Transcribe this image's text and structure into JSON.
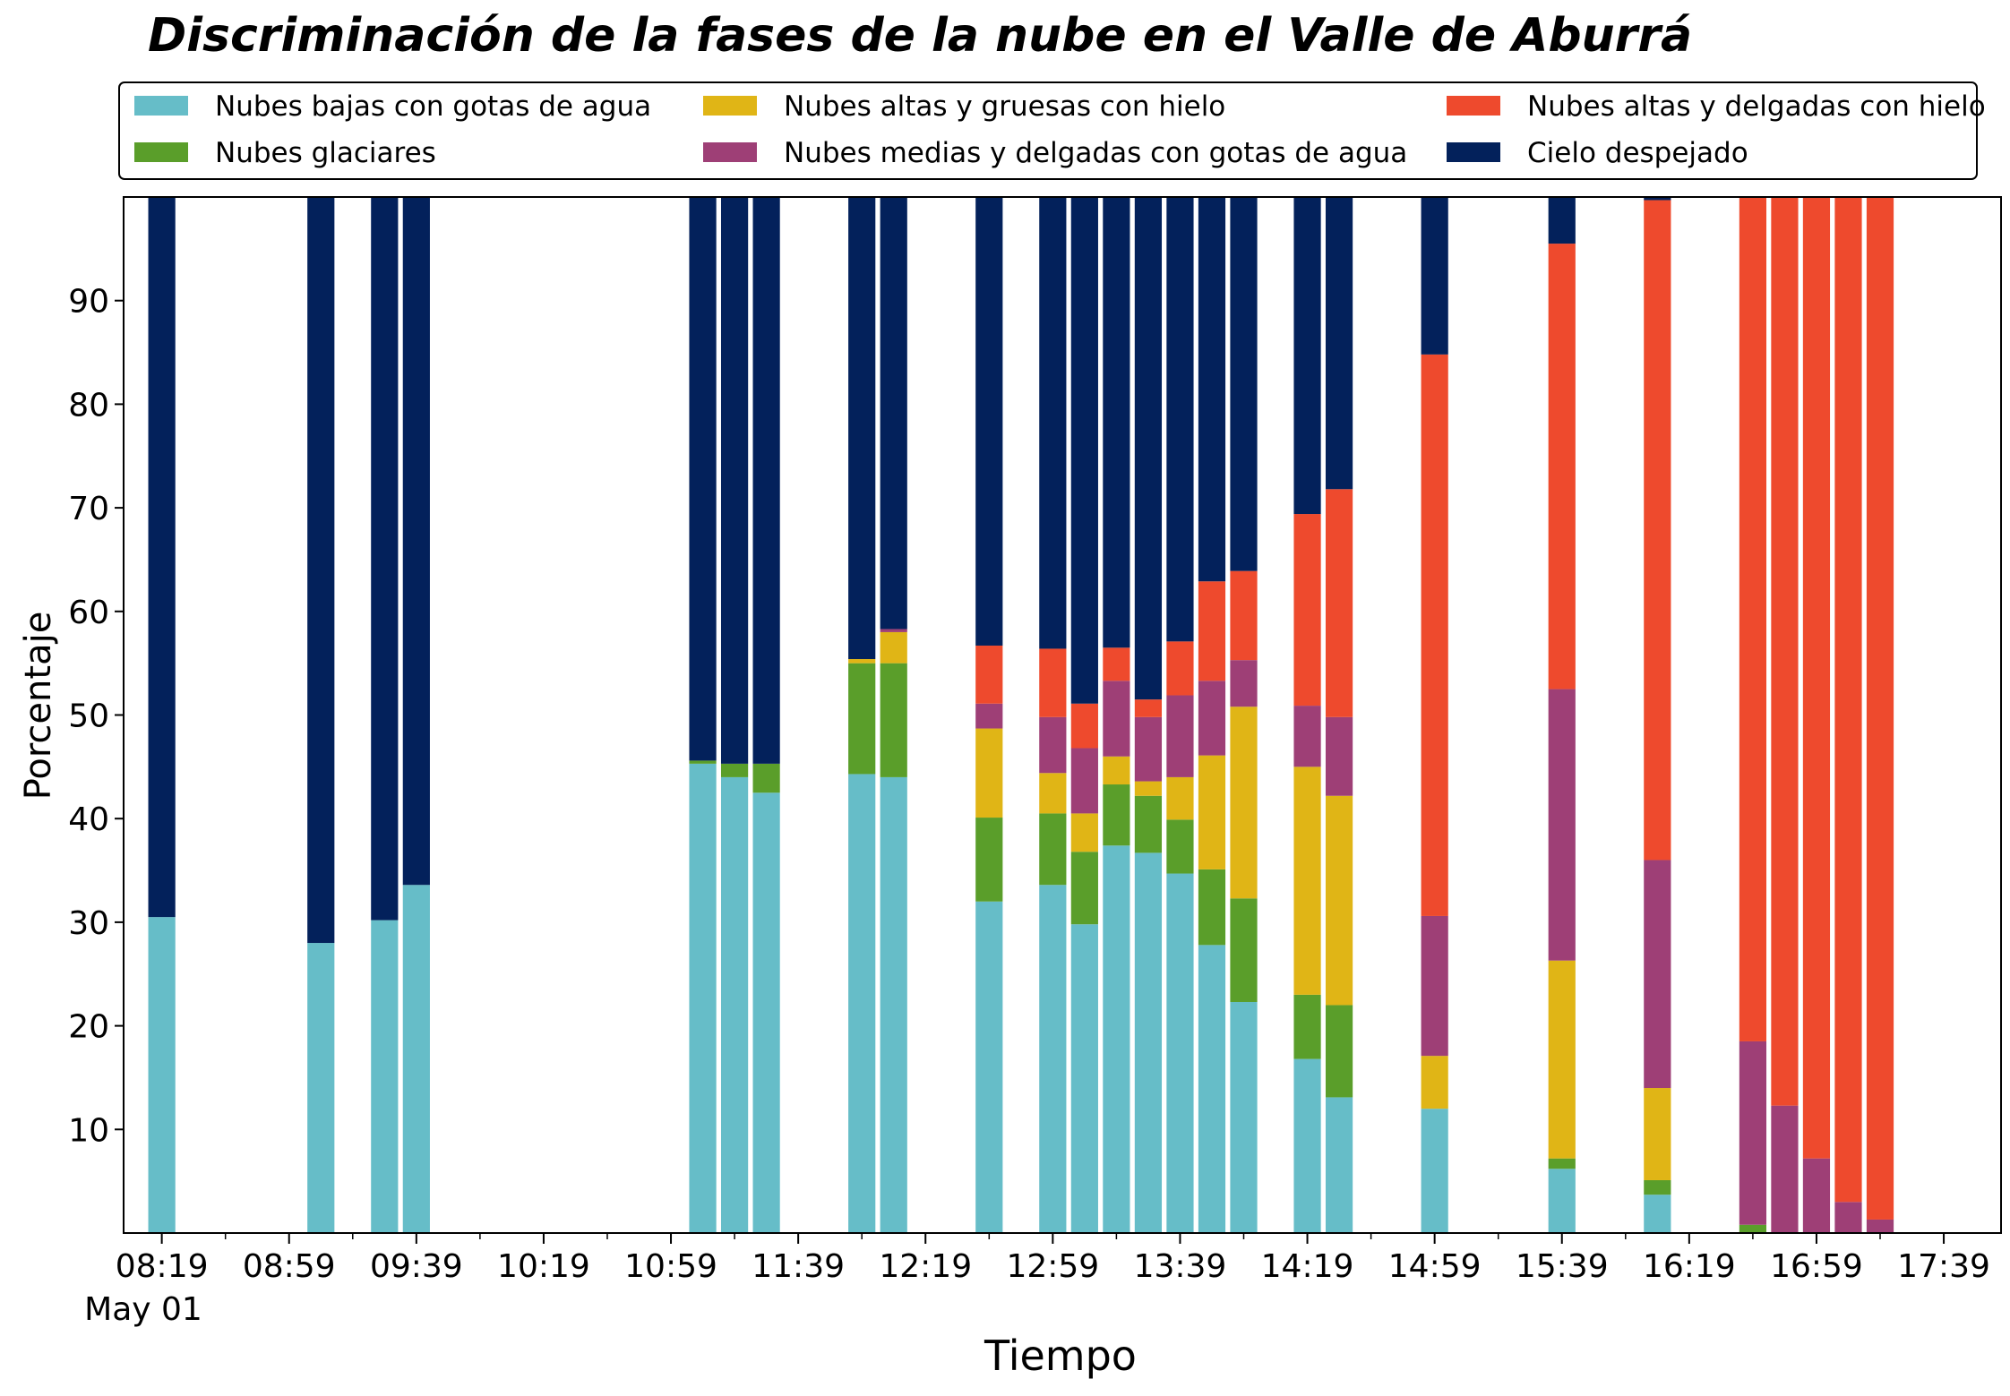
{
  "chart_data": {
    "type": "bar",
    "stacked": true,
    "title": "Discriminación de la fases de la nube en el Valle de Aburrá",
    "xlabel": "Tiempo",
    "ylabel": "Porcentaje",
    "ylim": [
      0,
      100
    ],
    "yticks": [
      10,
      20,
      30,
      40,
      50,
      60,
      70,
      80,
      90
    ],
    "x_range_minutes": [
      487,
      1077
    ],
    "xticks": [
      {
        "minute": 499,
        "label": "08:19"
      },
      {
        "minute": 539,
        "label": "08:59"
      },
      {
        "minute": 579,
        "label": "09:39"
      },
      {
        "minute": 619,
        "label": "10:19"
      },
      {
        "minute": 659,
        "label": "10:59"
      },
      {
        "minute": 699,
        "label": "11:39"
      },
      {
        "minute": 739,
        "label": "12:19"
      },
      {
        "minute": 779,
        "label": "12:59"
      },
      {
        "minute": 819,
        "label": "13:39"
      },
      {
        "minute": 859,
        "label": "14:19"
      },
      {
        "minute": 899,
        "label": "14:59"
      },
      {
        "minute": 939,
        "label": "15:39"
      },
      {
        "minute": 979,
        "label": "16:19"
      },
      {
        "minute": 1019,
        "label": "16:59"
      },
      {
        "minute": 1059,
        "label": "17:39"
      }
    ],
    "minor_tick_minutes": [
      519,
      559,
      599,
      639,
      679,
      719,
      759,
      799,
      839,
      879,
      919,
      959,
      999,
      1039,
      1079
    ],
    "date_label": "May 01",
    "legend_position": "top",
    "grid": false,
    "bar_width_minutes": 8.5,
    "series_names": [
      "Nubes bajas con gotas de agua",
      "Nubes glaciares",
      "Nubes altas y gruesas con hielo",
      "Nubes medias y delgadas con gotas de agua",
      "Nubes altas y delgadas con hielo",
      "Cielo despejado"
    ],
    "series_colors": [
      "#66bdc8",
      "#5a9e2a",
      "#e0b516",
      "#9e3f76",
      "#ee4a2d",
      "#03215b"
    ],
    "legend_layout": [
      [
        0,
        2,
        4
      ],
      [
        1,
        3,
        5
      ]
    ],
    "bars": [
      {
        "time": "08:19",
        "minute": 499,
        "values": [
          30.5,
          0,
          0,
          0,
          0,
          69.5
        ]
      },
      {
        "time": "09:09",
        "minute": 549,
        "values": [
          28,
          0,
          0,
          0,
          0,
          72
        ]
      },
      {
        "time": "09:29",
        "minute": 569,
        "values": [
          30.2,
          0,
          0,
          0,
          0,
          69.8
        ]
      },
      {
        "time": "09:39",
        "minute": 579,
        "values": [
          33.6,
          0,
          0,
          0,
          0,
          66.4
        ]
      },
      {
        "time": "11:09",
        "minute": 669,
        "values": [
          45.3,
          0.3,
          0,
          0,
          0,
          54.4
        ]
      },
      {
        "time": "11:19",
        "minute": 679,
        "values": [
          44,
          1.3,
          0,
          0,
          0,
          54.7
        ]
      },
      {
        "time": "11:29",
        "minute": 689,
        "values": [
          42.5,
          2.8,
          0,
          0,
          0,
          54.7
        ]
      },
      {
        "time": "11:59",
        "minute": 719,
        "values": [
          44.3,
          10.7,
          0.4,
          0,
          0,
          44.6
        ]
      },
      {
        "time": "12:09",
        "minute": 729,
        "values": [
          44,
          11,
          3,
          0.3,
          0,
          41.7
        ]
      },
      {
        "time": "12:39",
        "minute": 759,
        "values": [
          32,
          8.1,
          8.6,
          2.4,
          5.6,
          43.3
        ]
      },
      {
        "time": "12:59",
        "minute": 779,
        "values": [
          33.6,
          6.9,
          3.9,
          5.4,
          6.6,
          43.6
        ]
      },
      {
        "time": "13:09",
        "minute": 789,
        "values": [
          29.8,
          7,
          3.7,
          6.3,
          4.3,
          48.9
        ]
      },
      {
        "time": "13:19",
        "minute": 799,
        "values": [
          37.4,
          5.9,
          2.7,
          7.3,
          3.2,
          43.5
        ]
      },
      {
        "time": "13:29",
        "minute": 809,
        "values": [
          36.7,
          5.5,
          1.4,
          6.2,
          1.7,
          48.5
        ]
      },
      {
        "time": "13:39",
        "minute": 819,
        "values": [
          34.7,
          5.2,
          4.1,
          7.9,
          5.2,
          42.9
        ]
      },
      {
        "time": "13:49",
        "minute": 829,
        "values": [
          27.8,
          7.3,
          11,
          7.2,
          9.6,
          37.1
        ]
      },
      {
        "time": "13:59",
        "minute": 839,
        "values": [
          22.3,
          10,
          18.5,
          4.5,
          8.6,
          36.1
        ]
      },
      {
        "time": "14:19",
        "minute": 859,
        "values": [
          16.8,
          6.2,
          22,
          5.9,
          18.5,
          30.6
        ]
      },
      {
        "time": "14:29",
        "minute": 869,
        "values": [
          13.1,
          8.9,
          20.2,
          7.6,
          22,
          28.2
        ]
      },
      {
        "time": "14:59",
        "minute": 899,
        "values": [
          12,
          0,
          5.1,
          13.5,
          54.2,
          15.2
        ]
      },
      {
        "time": "15:39",
        "minute": 939,
        "values": [
          6.2,
          1,
          19.1,
          26.2,
          43,
          4.5
        ]
      },
      {
        "time": "16:09",
        "minute": 969,
        "values": [
          3.7,
          1.4,
          8.9,
          22,
          63.7,
          0.3
        ]
      },
      {
        "time": "16:39",
        "minute": 999,
        "values": [
          0,
          0.8,
          0,
          17.7,
          81.5,
          0
        ]
      },
      {
        "time": "16:49",
        "minute": 1009,
        "values": [
          0,
          0,
          0,
          12.3,
          87.7,
          0
        ]
      },
      {
        "time": "16:59",
        "minute": 1019,
        "values": [
          0,
          0,
          0,
          7.2,
          92.8,
          0
        ]
      },
      {
        "time": "17:09",
        "minute": 1029,
        "values": [
          0,
          0,
          0,
          3,
          97,
          0
        ]
      },
      {
        "time": "17:19",
        "minute": 1039,
        "values": [
          0,
          0,
          0,
          1.3,
          98.7,
          0
        ]
      }
    ]
  }
}
